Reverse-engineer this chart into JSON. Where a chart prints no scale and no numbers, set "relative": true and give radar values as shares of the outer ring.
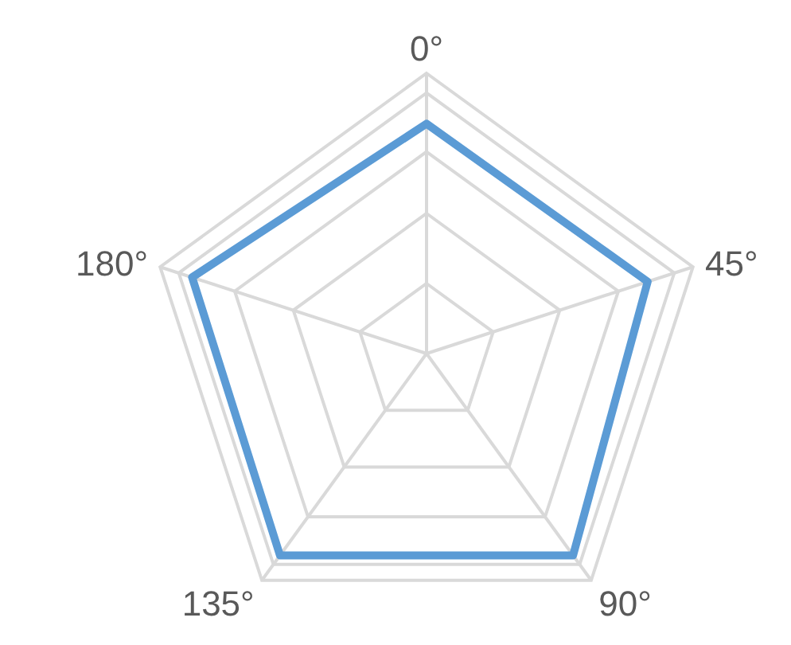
{
  "chart_data": {
    "type": "radar",
    "categories": [
      "0°",
      "45°",
      "90°",
      "135°",
      "180°"
    ],
    "relative": true,
    "grid": true,
    "series": [
      {
        "color": "#5b9bd5",
        "values": [
          0.82,
          0.83,
          0.89,
          0.89,
          0.88
        ]
      }
    ]
  }
}
